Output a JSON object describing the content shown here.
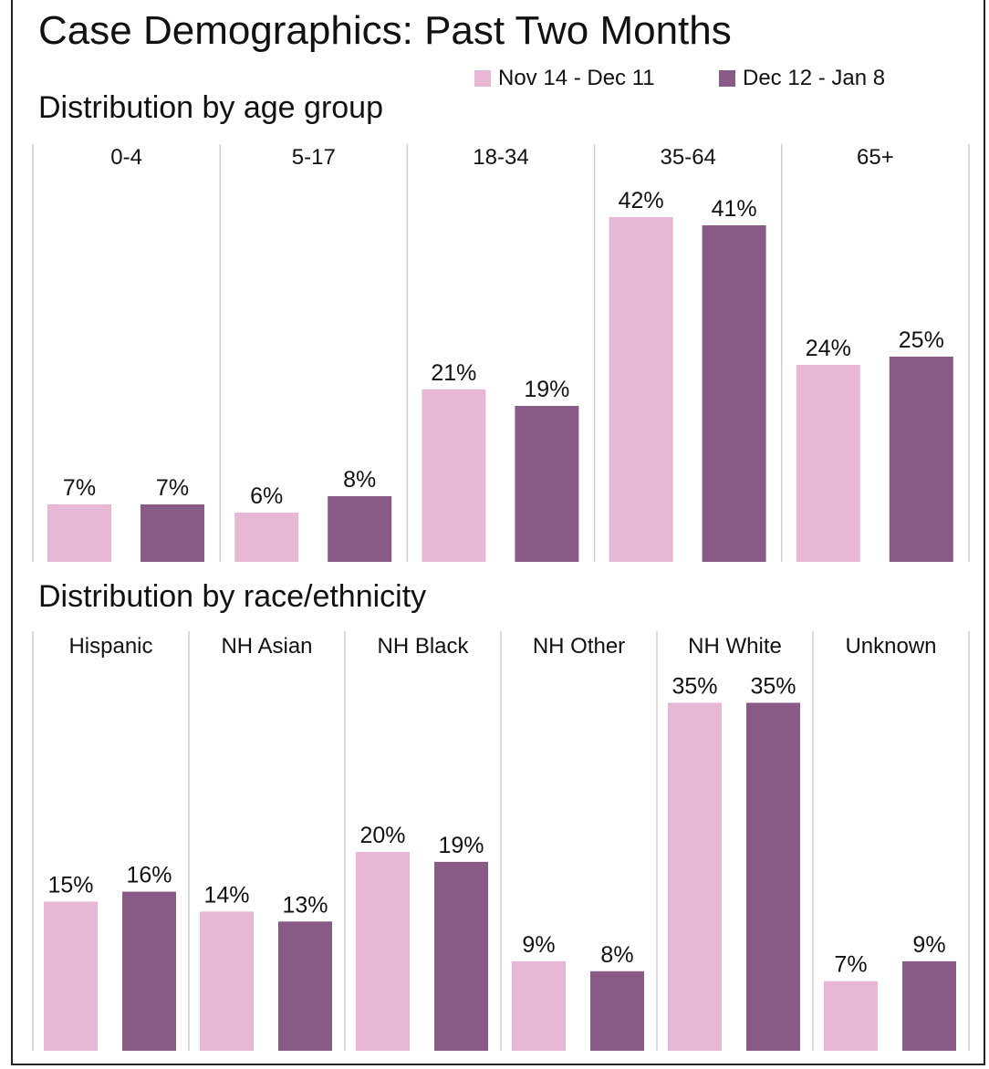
{
  "title": "Case Demographics: Past Two Months",
  "legend": {
    "series_a": "Nov 14 - Dec 11",
    "series_b": "Dec 12 - Jan 8"
  },
  "colors": {
    "series_a": "#e8b7d6",
    "series_b": "#8a5a86",
    "divider": "#cfcfcf",
    "text": "#111111"
  },
  "chart_data": [
    {
      "type": "bar",
      "title": "Distribution by age group",
      "categories": [
        "0-4",
        "5-17",
        "18-34",
        "35-64",
        "65+"
      ],
      "series": [
        {
          "name": "Nov 14 - Dec 11",
          "values": [
            7,
            6,
            21,
            42,
            24
          ],
          "labels": [
            "7%",
            "6%",
            "21%",
            "42%",
            "24%"
          ]
        },
        {
          "name": "Dec 12 - Jan 8",
          "values": [
            7,
            8,
            19,
            41,
            25
          ],
          "labels": [
            "7%",
            "8%",
            "19%",
            "41%",
            "25%"
          ]
        }
      ],
      "ylim": [
        0,
        50
      ],
      "grid": false,
      "legend": "top-right"
    },
    {
      "type": "bar",
      "title": "Distribution by race/ethnicity",
      "categories": [
        "Hispanic",
        "NH Asian",
        "NH Black",
        "NH Other",
        "NH White",
        "Unknown"
      ],
      "series": [
        {
          "name": "Nov 14 - Dec 11",
          "values": [
            15,
            14,
            20,
            9,
            35,
            7
          ],
          "labels": [
            "15%",
            "14%",
            "20%",
            "9%",
            "35%",
            "7%"
          ]
        },
        {
          "name": "Dec 12 - Jan 8",
          "values": [
            16,
            13,
            19,
            8,
            35,
            9
          ],
          "labels": [
            "16%",
            "13%",
            "19%",
            "8%",
            "35%",
            "9%"
          ]
        }
      ],
      "ylim": [
        0,
        40
      ],
      "grid": false,
      "legend": "top-right"
    }
  ]
}
